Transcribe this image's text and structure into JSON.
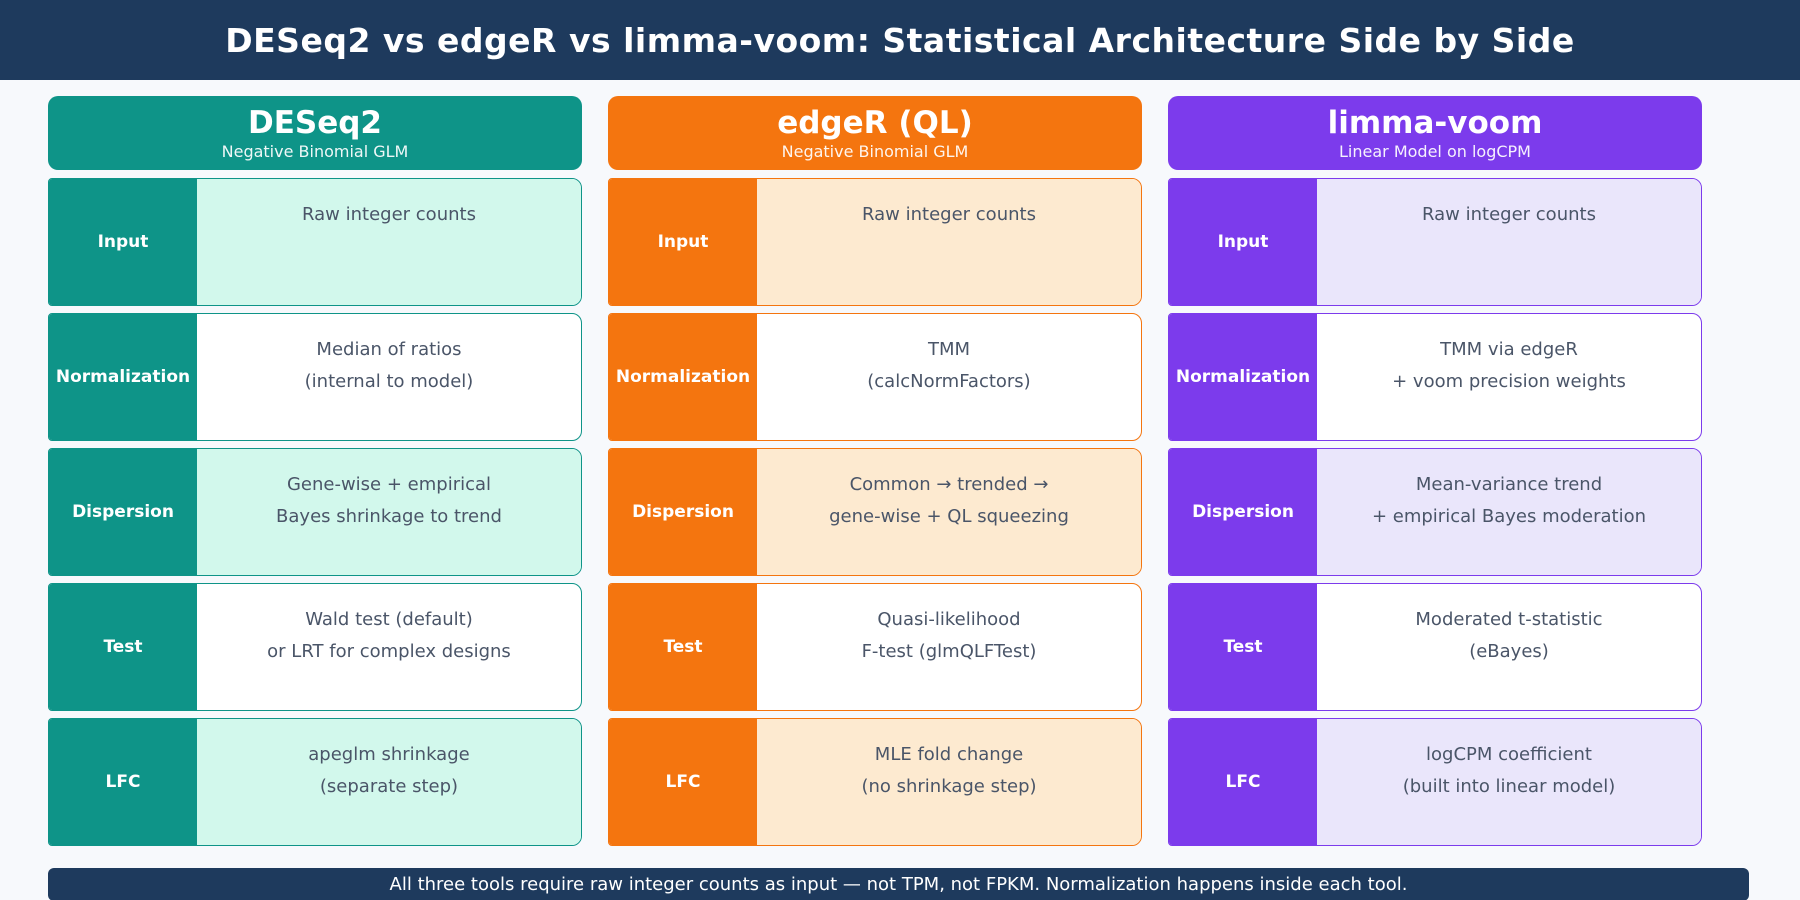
{
  "page": {
    "title": "DESeq2 vs edgeR vs limma-voom: Statistical Architecture Side by Side",
    "footer": "All three tools require raw integer counts as input — not TPM, not FPKM. Normalization happens inside each tool."
  },
  "colors": {
    "navy": "#1e3a5d",
    "teal": "#0e9488",
    "teal_tint": "#d2f8ec",
    "orange": "#f4750f",
    "orange_tint": "#fdead0",
    "purple": "#7c3bec",
    "purple_tint": "#eae6fb",
    "body_text": "#4a5568",
    "page_background": "#f7f9fc"
  },
  "columns": [
    {
      "id": "deseq2",
      "name": "DESeq2",
      "subtitle": "Negative Binomial GLM",
      "accent": "#0e9488",
      "tint": "#d2f8ec",
      "rows": [
        {
          "label": "Input",
          "lines": [
            "Raw integer counts"
          ]
        },
        {
          "label": "Normalization",
          "lines": [
            "Median of ratios",
            "(internal to model)"
          ]
        },
        {
          "label": "Dispersion",
          "lines": [
            "Gene-wise + empirical",
            "Bayes shrinkage to trend"
          ]
        },
        {
          "label": "Test",
          "lines": [
            "Wald test (default)",
            "or LRT for complex designs"
          ]
        },
        {
          "label": "LFC",
          "lines": [
            "apeglm shrinkage",
            "(separate step)"
          ]
        }
      ]
    },
    {
      "id": "edger",
      "name": "edgeR (QL)",
      "subtitle": "Negative Binomial GLM",
      "accent": "#f4750f",
      "tint": "#fdead0",
      "rows": [
        {
          "label": "Input",
          "lines": [
            "Raw integer counts"
          ]
        },
        {
          "label": "Normalization",
          "lines": [
            "TMM",
            "(calcNormFactors)"
          ]
        },
        {
          "label": "Dispersion",
          "lines": [
            "Common → trended →",
            "gene-wise + QL squeezing"
          ]
        },
        {
          "label": "Test",
          "lines": [
            "Quasi-likelihood",
            "F-test (glmQLFTest)"
          ]
        },
        {
          "label": "LFC",
          "lines": [
            "MLE fold change",
            "(no shrinkage step)"
          ]
        }
      ]
    },
    {
      "id": "limma-voom",
      "name": "limma-voom",
      "subtitle": "Linear Model on logCPM",
      "accent": "#7c3bec",
      "tint": "#eae6fb",
      "rows": [
        {
          "label": "Input",
          "lines": [
            "Raw integer counts"
          ]
        },
        {
          "label": "Normalization",
          "lines": [
            "TMM via edgeR",
            "+ voom precision weights"
          ]
        },
        {
          "label": "Dispersion",
          "lines": [
            "Mean-variance trend",
            "+ empirical Bayes moderation"
          ]
        },
        {
          "label": "Test",
          "lines": [
            "Moderated t-statistic",
            "(eBayes)"
          ]
        },
        {
          "label": "LFC",
          "lines": [
            "logCPM coefficient",
            "(built into linear model)"
          ]
        }
      ]
    }
  ]
}
